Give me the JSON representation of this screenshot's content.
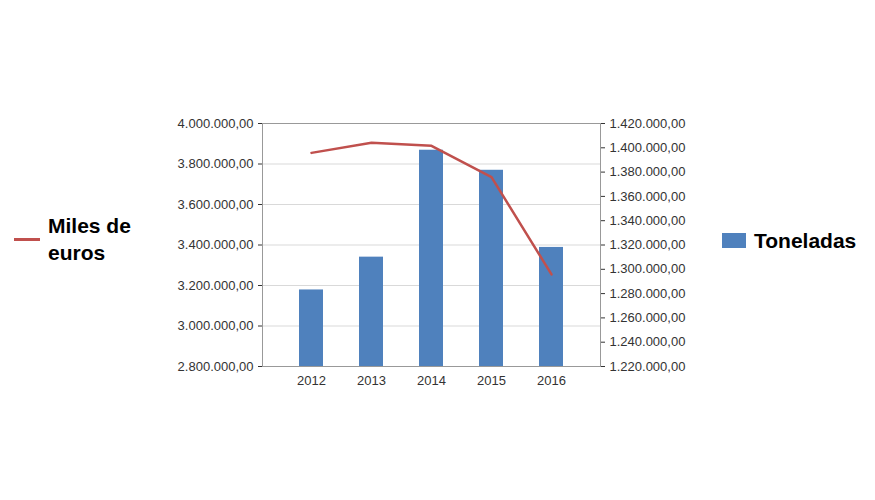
{
  "chart_data": {
    "type": "bar",
    "categories": [
      "2012",
      "2013",
      "2014",
      "2015",
      "2016"
    ],
    "series": [
      {
        "name": "Miles de euros",
        "type": "line",
        "axis": "y",
        "color": "#c0504d",
        "values": [
          3855000,
          3905000,
          3890000,
          3735000,
          3255000
        ]
      },
      {
        "name": "Toneladas",
        "type": "bar",
        "axis": "y2",
        "color": "#4f81bd",
        "values": [
          1283000,
          1310000,
          1398000,
          1381500,
          1318000
        ]
      }
    ],
    "ylim": [
      2800000,
      4000000
    ],
    "yticks": [
      {
        "value": 2800000,
        "label": "2.800.000,00"
      },
      {
        "value": 3000000,
        "label": "3.000.000,00"
      },
      {
        "value": 3200000,
        "label": "3.200.000,00"
      },
      {
        "value": 3400000,
        "label": "3.400.000,00"
      },
      {
        "value": 3600000,
        "label": "3.600.000,00"
      },
      {
        "value": 3800000,
        "label": "3.800.000,00"
      },
      {
        "value": 4000000,
        "label": "4.000.000,00"
      }
    ],
    "y2lim": [
      1220000,
      1420000
    ],
    "y2ticks": [
      {
        "value": 1220000,
        "label": "1.220.000,00"
      },
      {
        "value": 1240000,
        "label": "1.240.000,00"
      },
      {
        "value": 1260000,
        "label": "1.260.000,00"
      },
      {
        "value": 1280000,
        "label": "1.280.000,00"
      },
      {
        "value": 1300000,
        "label": "1.300.000,00"
      },
      {
        "value": 1320000,
        "label": "1.320.000,00"
      },
      {
        "value": 1340000,
        "label": "1.340.000,00"
      },
      {
        "value": 1360000,
        "label": "1.360.000,00"
      },
      {
        "value": 1380000,
        "label": "1.380.000,00"
      },
      {
        "value": 1400000,
        "label": "1.400.000,00"
      },
      {
        "value": 1420000,
        "label": "1.420.000,00"
      }
    ],
    "grid": true
  }
}
